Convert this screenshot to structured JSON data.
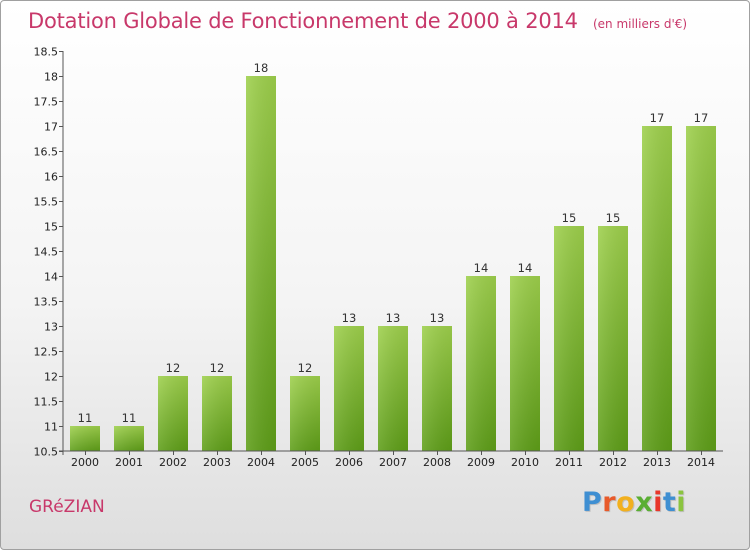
{
  "header": {
    "title": "Dotation Globale de Fonctionnement de 2000 à 2014",
    "unit": "(en milliers d'€)"
  },
  "footer": {
    "commune": "GRéZIAN",
    "logo_letters": [
      {
        "ch": "P",
        "color": "#3f8fd2"
      },
      {
        "ch": "r",
        "color": "#e85a2a"
      },
      {
        "ch": "o",
        "color": "#f2b01e"
      },
      {
        "ch": "x",
        "color": "#5aae33"
      },
      {
        "ch": "i",
        "color": "#e8362a"
      },
      {
        "ch": "t",
        "color": "#3f8fd2"
      },
      {
        "ch": "i",
        "color": "#8bc43f"
      }
    ]
  },
  "chart_data": {
    "type": "bar",
    "title": "Dotation Globale de Fonctionnement de 2000 à 2014",
    "subtitle": "(en milliers d'€)",
    "xlabel": "",
    "ylabel": "",
    "categories": [
      "2000",
      "2001",
      "2002",
      "2003",
      "2004",
      "2005",
      "2006",
      "2007",
      "2008",
      "2009",
      "2010",
      "2011",
      "2012",
      "2013",
      "2014"
    ],
    "values": [
      11,
      11,
      12,
      12,
      18,
      12,
      13,
      13,
      13,
      14,
      14,
      15,
      15,
      17,
      17
    ],
    "ylim": [
      10.5,
      18.5
    ],
    "yticks": [
      "10.5",
      "11",
      "11.5",
      "12",
      "12.5",
      "13",
      "13.5",
      "14",
      "14.5",
      "15",
      "15.5",
      "16",
      "16.5",
      "17",
      "17.5",
      "18",
      "18.5"
    ],
    "grid": false,
    "bar_color": "#7cbf2f"
  }
}
